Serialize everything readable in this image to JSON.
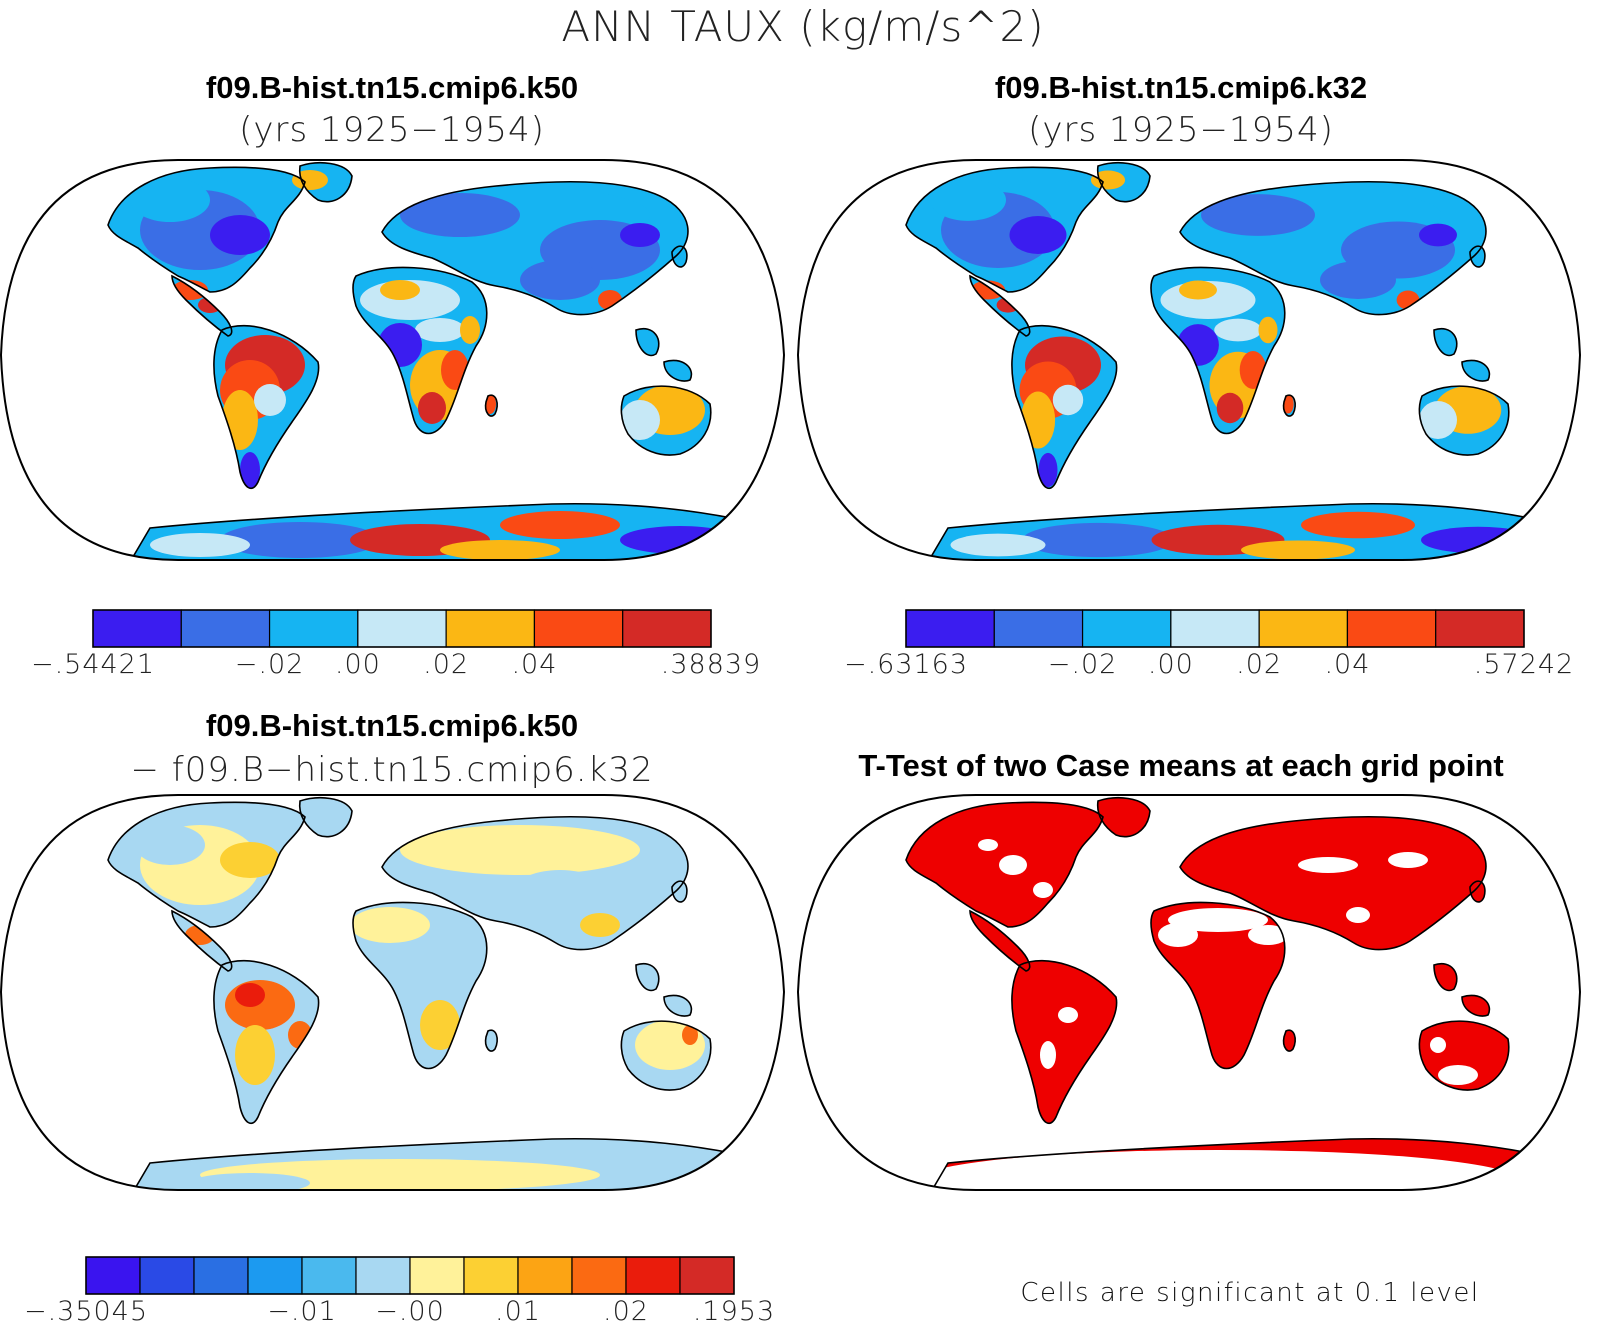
{
  "title": "ANN TAUX (kg/m/s^2)",
  "panels": [
    {
      "id": "k50",
      "title": "f09.B-hist.tn15.cmip6.k50",
      "subtitle": "(yrs 1925−1954)",
      "colorbar": {
        "colors": [
          "#3b1df0",
          "#3a6ee6",
          "#16b4f2",
          "#c6e8f6",
          "#fbb714",
          "#fa4a14",
          "#d42a26"
        ],
        "tick_labels": [
          "−.54421",
          "−.02",
          ".00",
          ".02",
          ".04",
          ".38839"
        ]
      }
    },
    {
      "id": "k32",
      "title": "f09.B-hist.tn15.cmip6.k32",
      "subtitle": "(yrs 1925−1954)",
      "colorbar": {
        "colors": [
          "#3b1df0",
          "#3a6ee6",
          "#16b4f2",
          "#c6e8f6",
          "#fbb714",
          "#fa4a14",
          "#d42a26"
        ],
        "tick_labels": [
          "−.63163",
          "−.02",
          ".00",
          ".02",
          ".04",
          ".57242"
        ]
      }
    },
    {
      "id": "diff",
      "title": "f09.B-hist.tn15.cmip6.k50",
      "subtitle": "− f09.B−hist.tn15.cmip6.k32",
      "colorbar": {
        "colors": [
          "#3a14ef",
          "#2a4ae6",
          "#2a6fe3",
          "#1c9af0",
          "#4ab9ee",
          "#a8d8f2",
          "#fff29a",
          "#fcd033",
          "#fca414",
          "#fb6a12",
          "#ea1c0c",
          "#d42a26"
        ],
        "tick_labels": [
          "−.35045",
          "−.01",
          "−.00",
          ".01",
          ".02",
          ".1953"
        ]
      }
    },
    {
      "id": "ttest",
      "title": "T-Test of two Case means at each grid point",
      "subtitle": "",
      "footnote": "Cells are significant at 0.1 level",
      "sig_color": "#ee0000"
    }
  ],
  "chart_data": [
    {
      "type": "heatmap",
      "title": "f09.B-hist.tn15.cmip6.k50 (yrs 1925−1954)",
      "variable": "ANN TAUX",
      "units": "kg/m/s^2",
      "levels": [
        -0.54421,
        -0.02,
        0.0,
        0.02,
        0.04,
        0.38839
      ]
    },
    {
      "type": "heatmap",
      "title": "f09.B-hist.tn15.cmip6.k32 (yrs 1925−1954)",
      "variable": "ANN TAUX",
      "units": "kg/m/s^2",
      "levels": [
        -0.63163,
        -0.02,
        0.0,
        0.02,
        0.04,
        0.57242
      ]
    },
    {
      "type": "heatmap",
      "title": "f09.B-hist.tn15.cmip6.k50 − f09.B−hist.tn15.cmip6.k32",
      "variable": "ANN TAUX",
      "units": "kg/m/s^2",
      "levels": [
        -0.35045,
        -0.01,
        -0.0,
        0.01,
        0.02,
        0.1953
      ]
    },
    {
      "type": "heatmap",
      "title": "T-Test of two Case means at each grid point",
      "significance_level": 0.1
    }
  ]
}
